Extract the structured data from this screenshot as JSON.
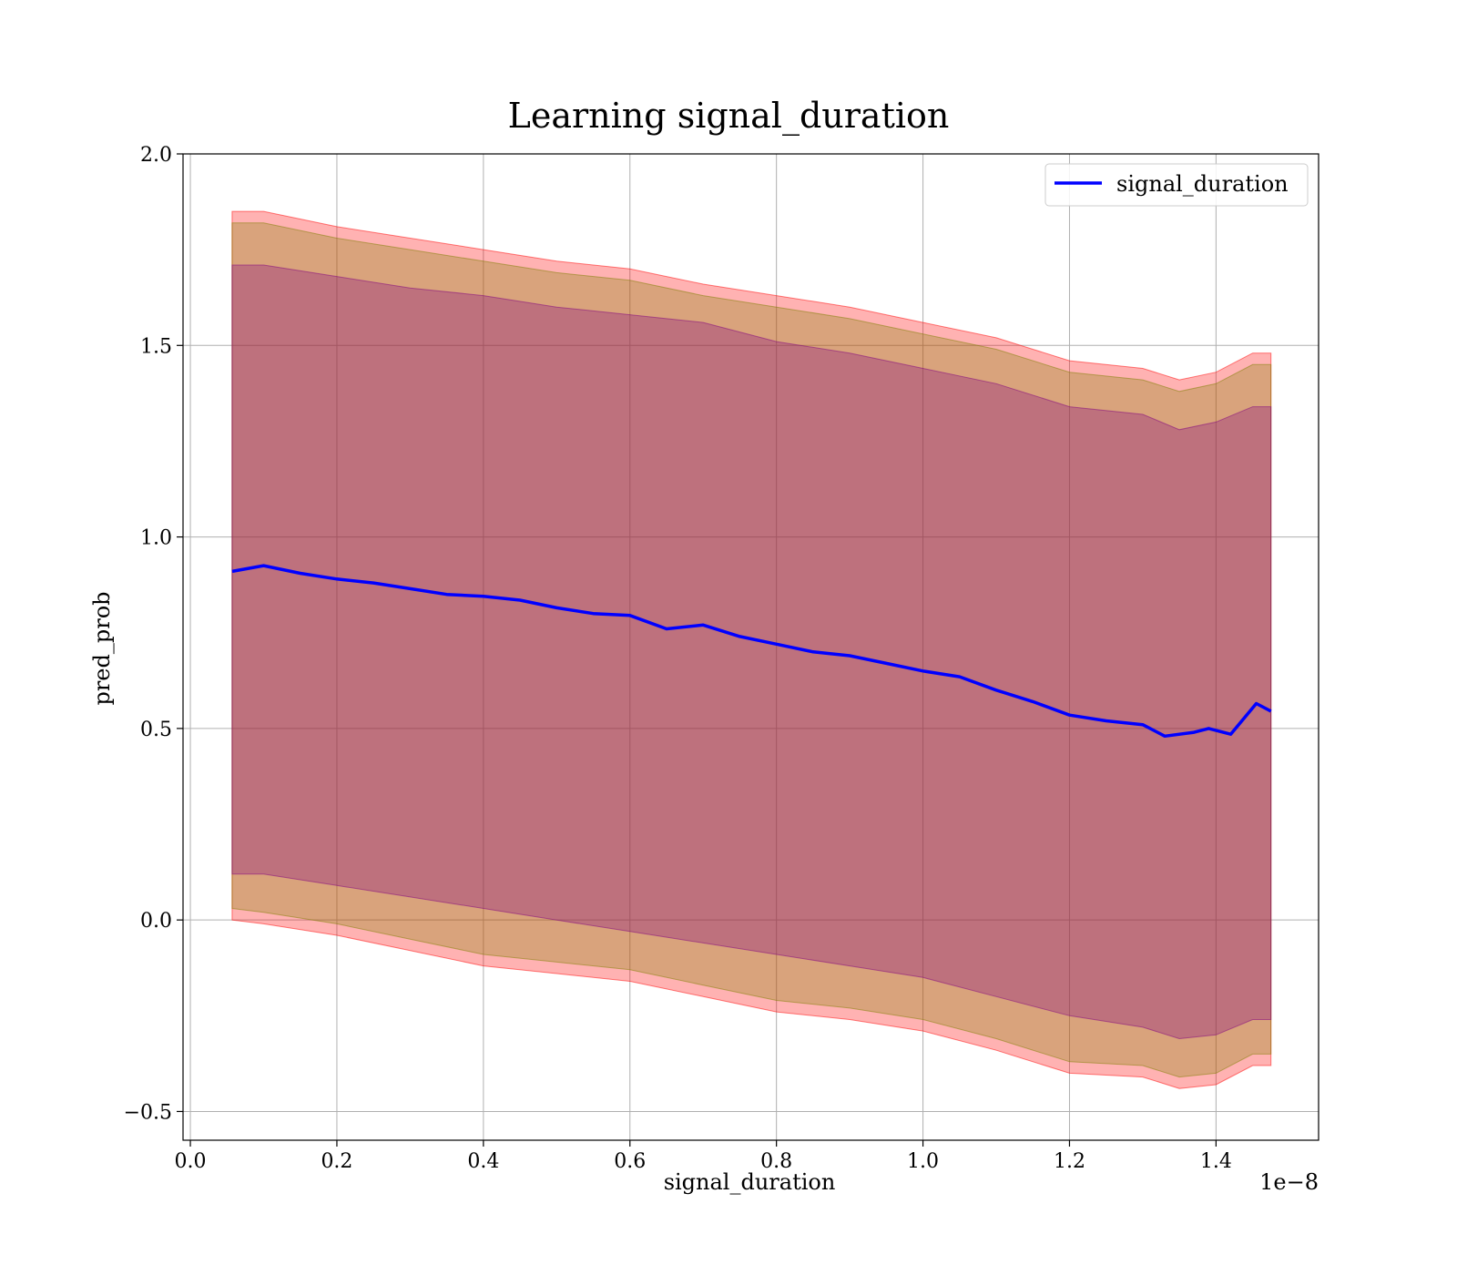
{
  "chart_data": {
    "type": "line",
    "title": "Learning signal_duration",
    "xlabel": "signal_duration",
    "ylabel": "pred_prob",
    "x_offset_text": "1e−8",
    "xlim": [
      -0.01,
      1.54
    ],
    "ylim": [
      -0.575,
      2.0
    ],
    "xticks": [
      0.0,
      0.2,
      0.4,
      0.6,
      0.8,
      1.0,
      1.2,
      1.4
    ],
    "xtick_labels": [
      "0.0",
      "0.2",
      "0.4",
      "0.6",
      "0.8",
      "1.0",
      "1.2",
      "1.4"
    ],
    "yticks": [
      -0.5,
      0.0,
      0.5,
      1.0,
      1.5,
      2.0
    ],
    "ytick_labels": [
      "−0.5",
      "0.0",
      "0.5",
      "1.0",
      "1.5",
      "2.0"
    ],
    "grid": true,
    "legend_position": "upper-right",
    "series": [
      {
        "name": "signal_duration",
        "color": "#0000ff",
        "x": [
          0.057,
          0.1,
          0.15,
          0.2,
          0.25,
          0.3,
          0.35,
          0.4,
          0.45,
          0.5,
          0.55,
          0.6,
          0.65,
          0.7,
          0.75,
          0.8,
          0.85,
          0.9,
          0.95,
          1.0,
          1.05,
          1.1,
          1.15,
          1.2,
          1.25,
          1.3,
          1.33,
          1.37,
          1.39,
          1.42,
          1.455,
          1.475
        ],
        "y": [
          0.91,
          0.925,
          0.905,
          0.89,
          0.88,
          0.865,
          0.85,
          0.845,
          0.835,
          0.815,
          0.8,
          0.795,
          0.76,
          0.77,
          0.74,
          0.72,
          0.7,
          0.69,
          0.67,
          0.65,
          0.635,
          0.6,
          0.57,
          0.535,
          0.52,
          0.51,
          0.48,
          0.49,
          0.5,
          0.485,
          0.565,
          0.545
        ]
      }
    ],
    "bands": [
      {
        "color": "#ff0000",
        "opacity": 0.3,
        "x": [
          0.057,
          0.1,
          0.2,
          0.3,
          0.4,
          0.5,
          0.6,
          0.7,
          0.8,
          0.9,
          1.0,
          1.1,
          1.2,
          1.3,
          1.35,
          1.4,
          1.45,
          1.475
        ],
        "upper": [
          1.85,
          1.85,
          1.81,
          1.78,
          1.75,
          1.72,
          1.7,
          1.66,
          1.63,
          1.6,
          1.56,
          1.52,
          1.46,
          1.44,
          1.41,
          1.43,
          1.48,
          1.48
        ],
        "lower": [
          0.0,
          -0.01,
          -0.04,
          -0.08,
          -0.12,
          -0.14,
          -0.16,
          -0.2,
          -0.24,
          -0.26,
          -0.29,
          -0.34,
          -0.4,
          -0.41,
          -0.44,
          -0.43,
          -0.38,
          -0.38
        ]
      },
      {
        "color": "#808000",
        "opacity": 0.3,
        "x": [
          0.057,
          0.1,
          0.2,
          0.3,
          0.4,
          0.5,
          0.6,
          0.7,
          0.8,
          0.9,
          1.0,
          1.1,
          1.2,
          1.3,
          1.35,
          1.4,
          1.45,
          1.475
        ],
        "upper": [
          1.82,
          1.82,
          1.78,
          1.75,
          1.72,
          1.69,
          1.67,
          1.63,
          1.6,
          1.57,
          1.53,
          1.49,
          1.43,
          1.41,
          1.38,
          1.4,
          1.45,
          1.45
        ],
        "lower": [
          0.03,
          0.02,
          -0.01,
          -0.05,
          -0.09,
          -0.11,
          -0.13,
          -0.17,
          -0.21,
          -0.23,
          -0.26,
          -0.31,
          -0.37,
          -0.38,
          -0.41,
          -0.4,
          -0.35,
          -0.35
        ]
      },
      {
        "color": "#800080",
        "opacity": 0.3,
        "x": [
          0.057,
          0.1,
          0.2,
          0.3,
          0.4,
          0.5,
          0.6,
          0.7,
          0.8,
          0.9,
          1.0,
          1.1,
          1.2,
          1.3,
          1.35,
          1.4,
          1.45,
          1.475
        ],
        "upper": [
          1.71,
          1.71,
          1.68,
          1.65,
          1.63,
          1.6,
          1.58,
          1.56,
          1.51,
          1.48,
          1.44,
          1.4,
          1.34,
          1.32,
          1.28,
          1.3,
          1.34,
          1.34
        ],
        "lower": [
          0.12,
          0.12,
          0.09,
          0.06,
          0.03,
          0.0,
          -0.03,
          -0.06,
          -0.09,
          -0.12,
          -0.15,
          -0.2,
          -0.25,
          -0.28,
          -0.31,
          -0.3,
          -0.26,
          -0.26
        ]
      }
    ]
  }
}
